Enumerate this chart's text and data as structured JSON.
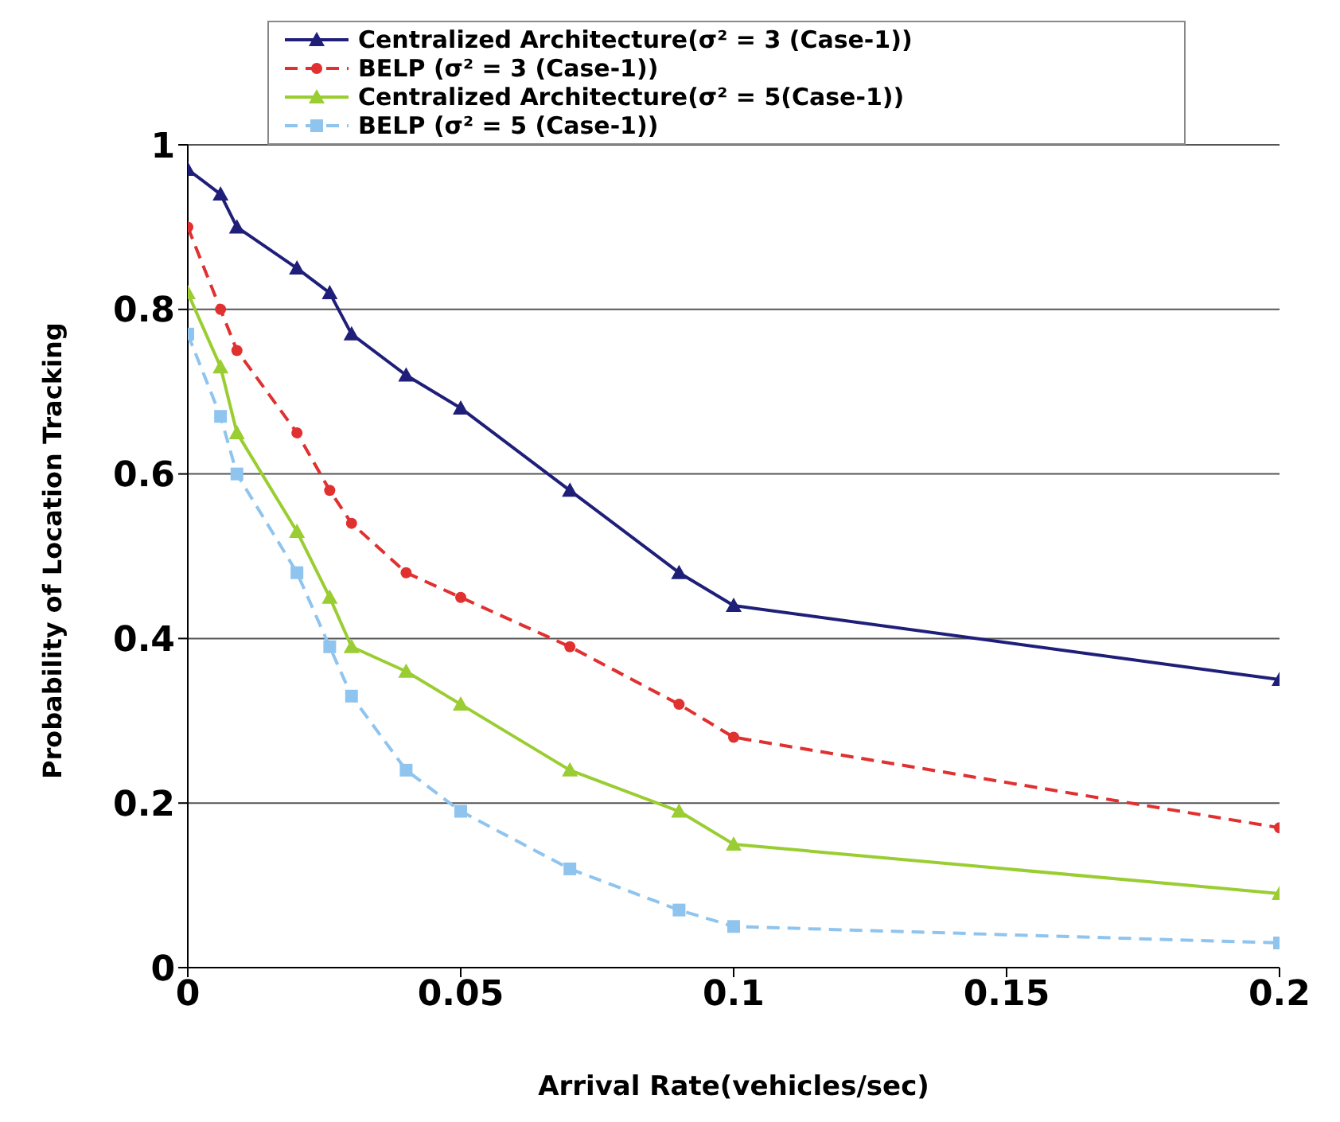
{
  "chart_data": {
    "type": "line",
    "xlabel": "Arrival Rate(vehicles/sec)",
    "ylabel": "Probability of Location Tracking",
    "x": [
      0,
      0.006,
      0.009,
      0.02,
      0.026,
      0.03,
      0.04,
      0.05,
      0.07,
      0.09,
      0.1,
      0.2
    ],
    "series": [
      {
        "name": "Centralized Architecture(σ² = 3 (Case-1))",
        "color": "#1f1f7a",
        "marker": "triangle",
        "line_style": "solid",
        "values": [
          0.97,
          0.94,
          0.9,
          0.85,
          0.82,
          0.77,
          0.72,
          0.68,
          0.58,
          0.48,
          0.44,
          0.35
        ]
      },
      {
        "name": "BELP (σ² = 3 (Case-1))",
        "color": "#e03030",
        "marker": "circle",
        "line_style": "dashed",
        "values": [
          0.9,
          0.8,
          0.75,
          0.65,
          0.58,
          0.54,
          0.48,
          0.45,
          0.39,
          0.32,
          0.28,
          0.17
        ]
      },
      {
        "name": "Centralized Architecture(σ² = 5(Case-1))",
        "color": "#9acd32",
        "marker": "triangle",
        "line_style": "solid",
        "values": [
          0.82,
          0.73,
          0.65,
          0.53,
          0.45,
          0.39,
          0.36,
          0.32,
          0.24,
          0.19,
          0.15,
          0.09
        ]
      },
      {
        "name": "BELP (σ² = 5 (Case-1))",
        "color": "#8fc4ee",
        "marker": "square",
        "line_style": "dashed",
        "values": [
          0.77,
          0.67,
          0.6,
          0.48,
          0.39,
          0.33,
          0.24,
          0.19,
          0.12,
          0.07,
          0.05,
          0.03
        ]
      }
    ],
    "xlim": [
      0,
      0.2
    ],
    "xticks": [
      0,
      0.05,
      0.1,
      0.15,
      0.2
    ],
    "ylim": [
      0,
      1
    ],
    "yticks": [
      0,
      0.2,
      0.4,
      0.6,
      0.8,
      1
    ],
    "grid": "y",
    "legend": "top"
  }
}
